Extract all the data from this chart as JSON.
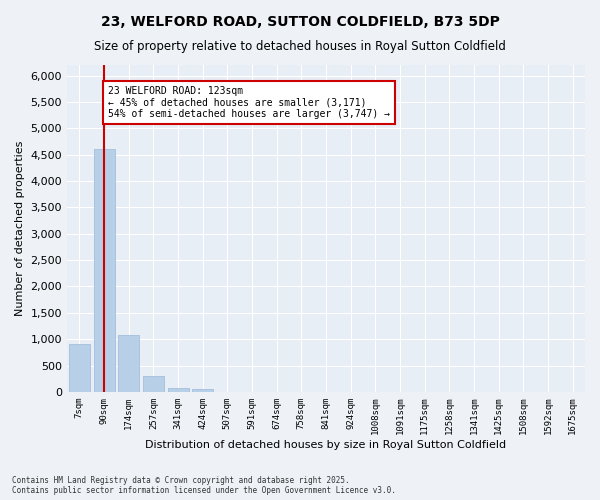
{
  "title": "23, WELFORD ROAD, SUTTON COLDFIELD, B73 5DP",
  "subtitle": "Size of property relative to detached houses in Royal Sutton Coldfield",
  "xlabel": "Distribution of detached houses by size in Royal Sutton Coldfield",
  "ylabel": "Number of detached properties",
  "bar_color": "#b8cfe8",
  "bar_edgecolor": "#9ab8d8",
  "vline_x": 1,
  "vline_color": "#cc0000",
  "annotation_text": "23 WELFORD ROAD: 123sqm\n← 45% of detached houses are smaller (3,171)\n54% of semi-detached houses are larger (3,747) →",
  "annotation_box_color": "#ffffff",
  "annotation_box_edgecolor": "#cc0000",
  "categories": [
    "7sqm",
    "90sqm",
    "174sqm",
    "257sqm",
    "341sqm",
    "424sqm",
    "507sqm",
    "591sqm",
    "674sqm",
    "758sqm",
    "841sqm",
    "924sqm",
    "1008sqm",
    "1091sqm",
    "1175sqm",
    "1258sqm",
    "1341sqm",
    "1425sqm",
    "1508sqm",
    "1592sqm",
    "1675sqm"
  ],
  "values": [
    900,
    4600,
    1080,
    295,
    80,
    60,
    0,
    0,
    0,
    0,
    0,
    0,
    0,
    0,
    0,
    0,
    0,
    0,
    0,
    0,
    0
  ],
  "ylim": [
    0,
    6200
  ],
  "yticks": [
    0,
    500,
    1000,
    1500,
    2000,
    2500,
    3000,
    3500,
    4000,
    4500,
    5000,
    5500,
    6000
  ],
  "footer": "Contains HM Land Registry data © Crown copyright and database right 2025.\nContains public sector information licensed under the Open Government Licence v3.0.",
  "bg_color": "#eef2f7",
  "plot_bg_color": "#e8eef6",
  "grid_color": "#ffffff"
}
